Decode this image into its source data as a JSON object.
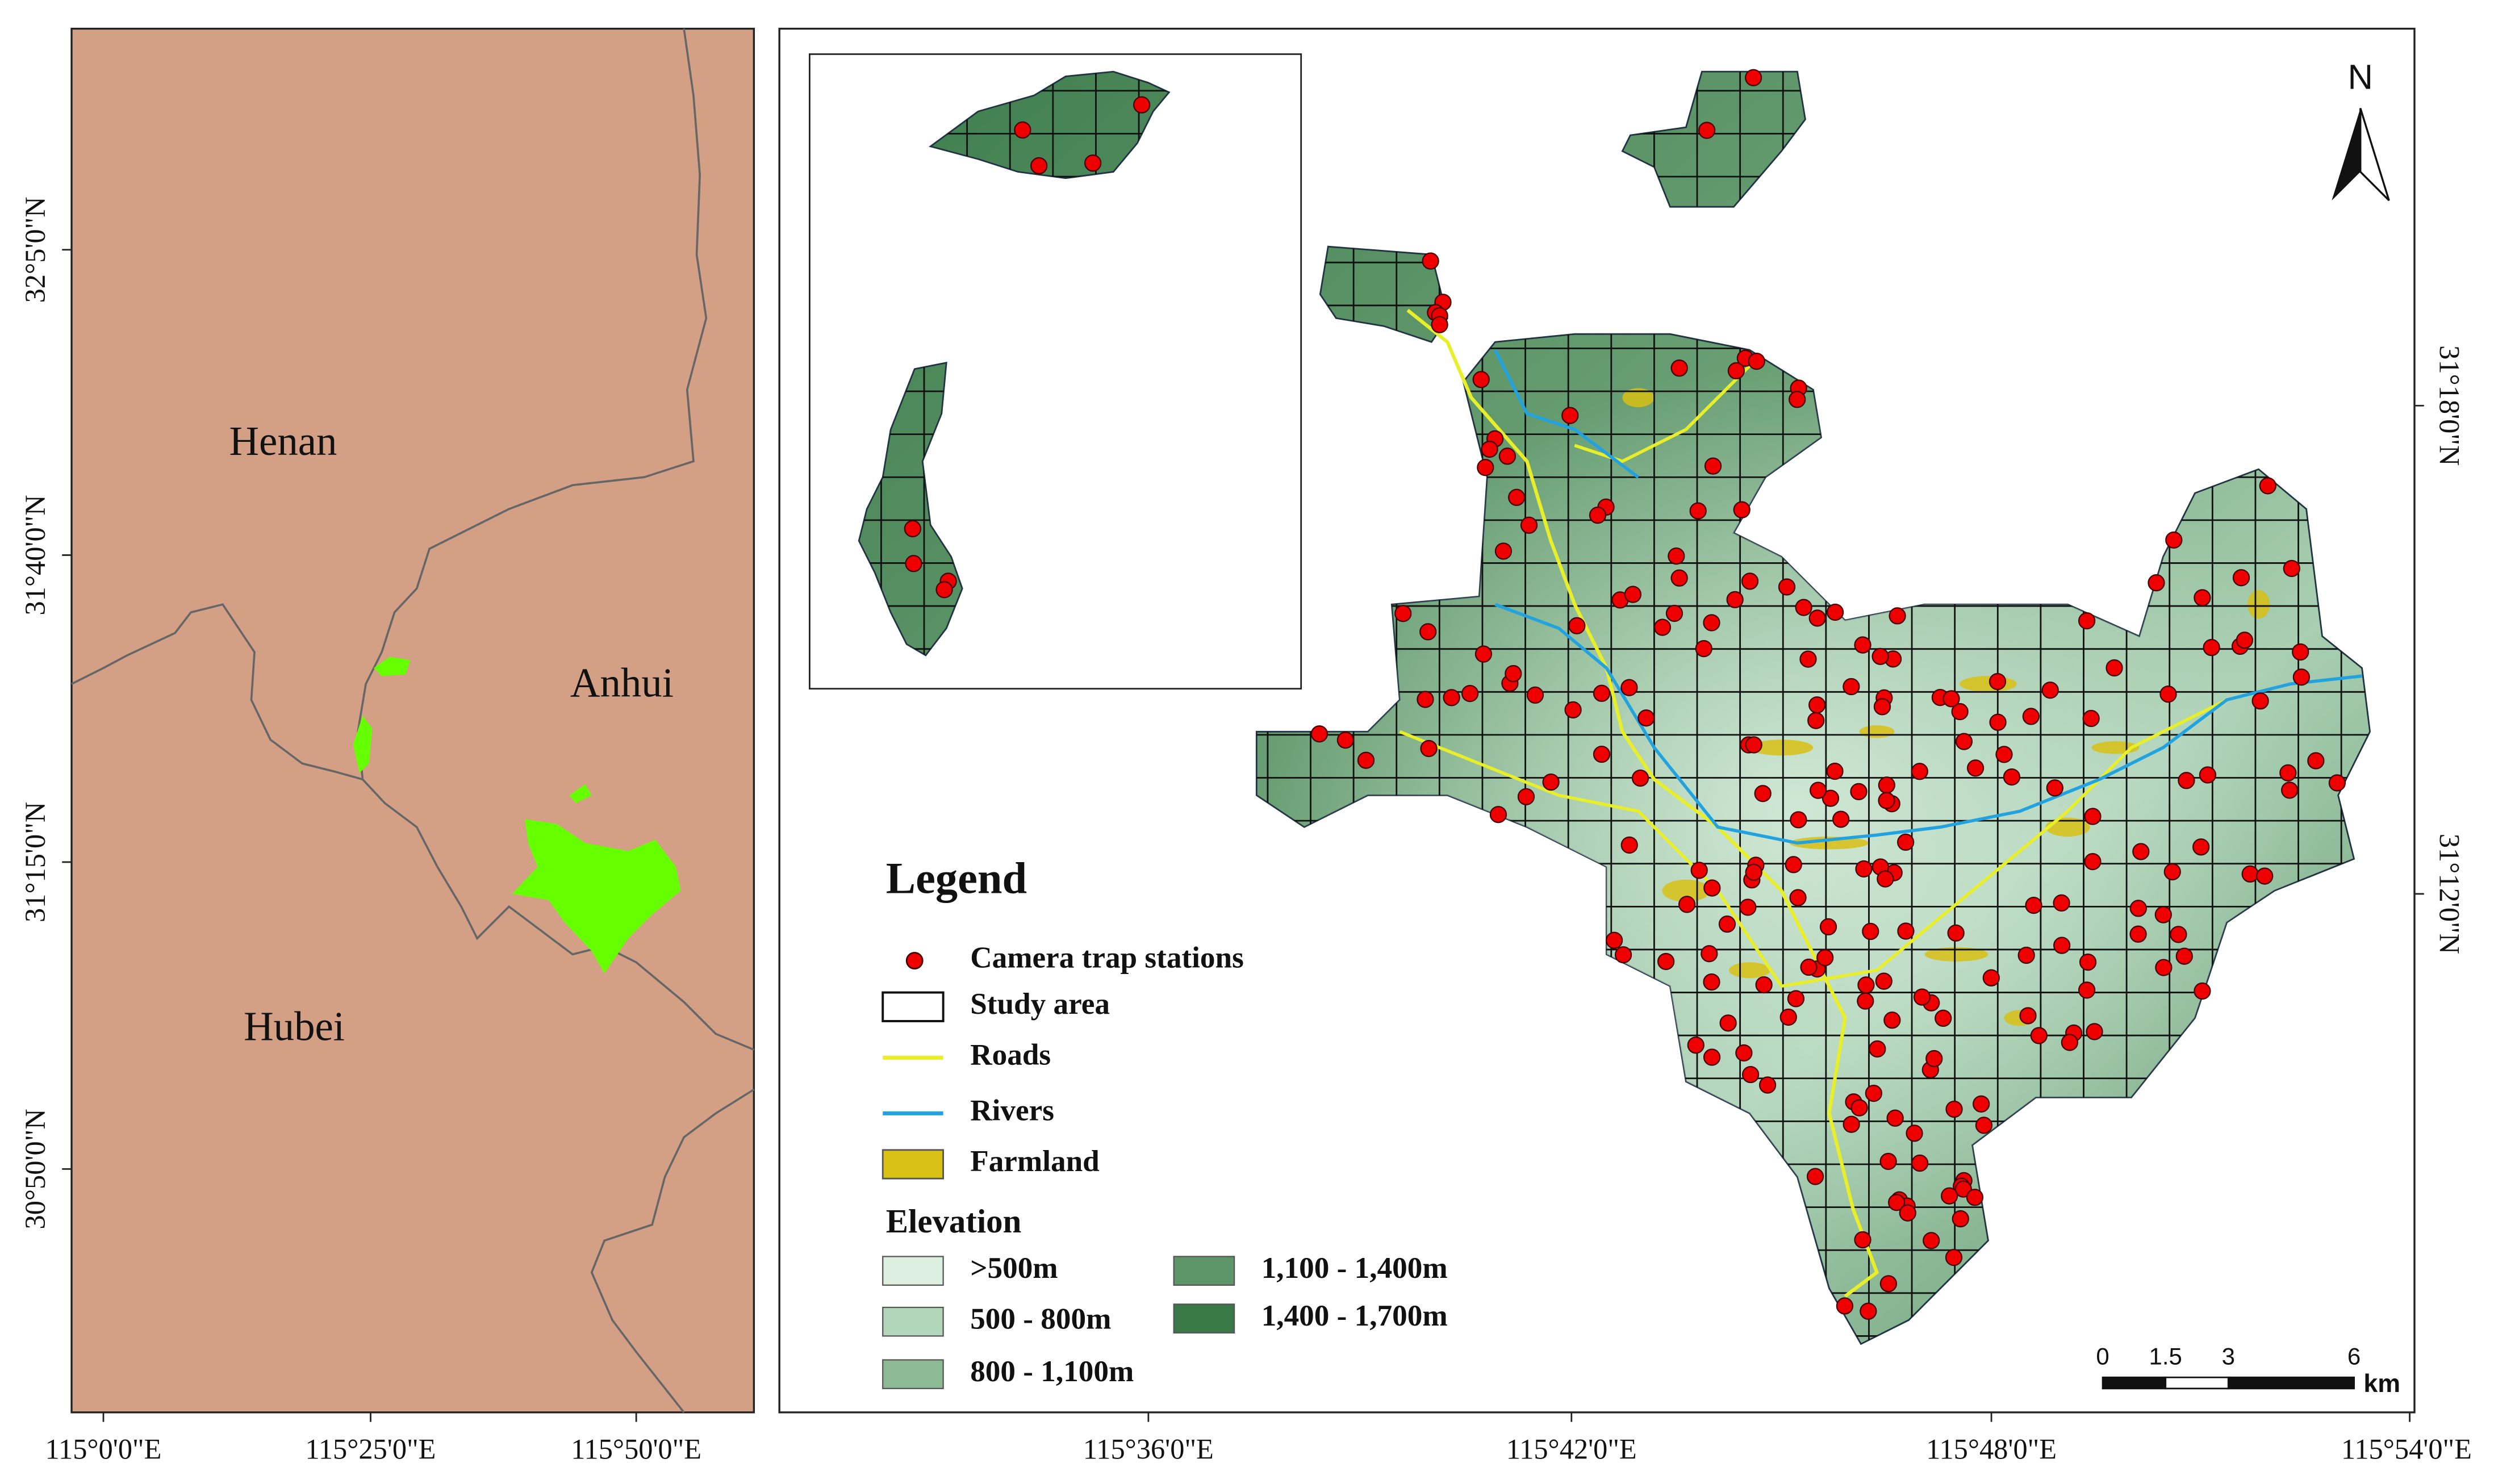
{
  "left_map": {
    "labels": [
      "Henan",
      "Anhui",
      "Hubei"
    ],
    "lat_ticks": [
      "32°5'0\"N",
      "31°40'0\"N",
      "31°15'0\"N",
      "30°50'0\"N"
    ],
    "lon_ticks": [
      "115°0'0\"E",
      "115°25'0\"E",
      "115°50'0\"E"
    ]
  },
  "right_map": {
    "lon_ticks": [
      "115°36'0\"E",
      "115°42'0\"E",
      "115°48'0\"E",
      "115°54'0\"E"
    ],
    "lat_ticks": [
      "31°18'0\"N",
      "31°12'0\"N"
    ],
    "north": "N",
    "scale_bar": {
      "ticks": [
        0,
        1.5,
        3,
        6
      ],
      "unit": "km"
    }
  },
  "legend": {
    "title": "Legend",
    "items": [
      "Camera trap stations",
      "Study area",
      "Roads",
      "Rivers",
      "Farmland"
    ],
    "elevation_title": "Elevation",
    "elevation_classes": [
      {
        "label": ">500m",
        "color": "#dcefe1"
      },
      {
        "label": "500 - 800m",
        "color": "#b2d6ba"
      },
      {
        "label": "800 - 1,100m",
        "color": "#8cba95"
      },
      {
        "label": "1,100 - 1,400m",
        "color": "#5f9669"
      },
      {
        "label": "1,400 - 1,700m",
        "color": "#3a7848"
      }
    ]
  }
}
